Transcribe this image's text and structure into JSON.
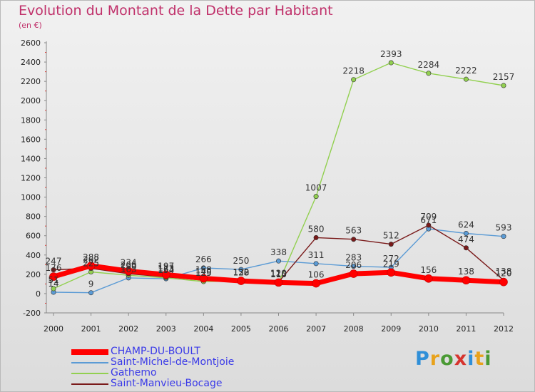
{
  "header": {
    "title": "Evolution du Montant de la Dette par Habitant",
    "unit": "(en €)"
  },
  "brand": {
    "letters": [
      "P",
      "r",
      "o",
      "x",
      "i",
      "t",
      "i"
    ],
    "colors": [
      "#2f8fd8",
      "#e8a21c",
      "#4a9a34",
      "#d6342e",
      "#2f8fd8",
      "#e8a21c",
      "#4a9a34"
    ]
  },
  "chart_data": {
    "type": "line",
    "title": "Evolution du Montant de la Dette par Habitant",
    "ylabel": "(en €)",
    "xlabel": "",
    "x": [
      "2000",
      "2001",
      "2002",
      "2003",
      "2004",
      "2005",
      "2006",
      "2007",
      "2008",
      "2009",
      "2010",
      "2011",
      "2012"
    ],
    "ylim": [
      -200,
      2600
    ],
    "yticks": [
      -200,
      0,
      200,
      400,
      600,
      800,
      1000,
      1200,
      1400,
      1600,
      1800,
      2000,
      2200,
      2400,
      2600
    ],
    "grid": false,
    "legend_position": "bottom-left",
    "series": [
      {
        "name": "CHAMP-DU-BOULT",
        "color": "#ff0000",
        "values": [
          176,
          288,
          234,
          197,
          158,
          132,
          115,
          106,
          206,
          219,
          156,
          138,
          120
        ],
        "labels": [
          "176",
          "288",
          "234",
          "197",
          "158",
          "132",
          "115",
          "106",
          "206",
          "219",
          "156",
          "138",
          "120"
        ]
      },
      {
        "name": "Saint-Michel-de-Montjoie",
        "color": "#5b9bd5",
        "values": [
          14,
          9,
          163,
          154,
          266,
          250,
          338,
          311,
          283,
          272,
          671,
          624,
          593
        ],
        "labels": [
          "14",
          "9",
          "163",
          "154",
          "266",
          "250",
          "338",
          "311",
          "283",
          "272",
          "671",
          "624",
          "593"
        ]
      },
      {
        "name": "Gathemo",
        "color": "#92d050",
        "values": [
          51,
          225,
          190,
          163,
          125,
          130,
          110,
          1007,
          2218,
          2393,
          2284,
          2222,
          2157
        ],
        "labels": [
          "51",
          "225",
          "190",
          "163",
          "125",
          "130",
          "110",
          "1007",
          "2218",
          "2393",
          "2284",
          "2222",
          "2157"
        ]
      },
      {
        "name": "Saint-Manvieu-Bocage",
        "color": "#7a1a1a",
        "values": [
          247,
          262,
          206,
          173,
          140,
          128,
          120,
          580,
          563,
          512,
          709,
          474,
          138
        ],
        "labels": [
          "247",
          "262",
          "206",
          "173",
          "140",
          "128",
          "120",
          "580",
          "563",
          "512",
          "709",
          "474",
          "138"
        ]
      }
    ]
  }
}
